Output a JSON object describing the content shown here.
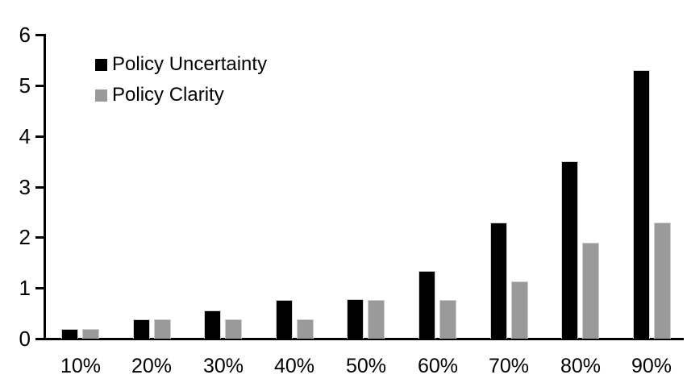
{
  "chart_data": {
    "type": "bar",
    "title": "",
    "xlabel": "",
    "ylabel": "",
    "categories": [
      "10%",
      "20%",
      "30%",
      "40%",
      "50%",
      "60%",
      "70%",
      "80%",
      "90%"
    ],
    "series": [
      {
        "name": "Policy Uncertainty",
        "color": "#000000",
        "values": [
          0.19,
          0.38,
          0.56,
          0.76,
          0.78,
          1.33,
          2.3,
          3.5,
          5.3
        ]
      },
      {
        "name": "Policy Clarity",
        "color": "#9a9a9a",
        "values": [
          0.19,
          0.38,
          0.38,
          0.38,
          0.76,
          0.76,
          1.13,
          1.9,
          2.3
        ]
      }
    ],
    "ylim": [
      0,
      6
    ],
    "yticks": [
      0,
      1,
      2,
      3,
      4,
      5,
      6
    ],
    "grid": false,
    "legend_position": "top-left",
    "background_color": "#ffffff",
    "axis_color": "#000000",
    "bar_border_color": "#d0d0d0"
  }
}
